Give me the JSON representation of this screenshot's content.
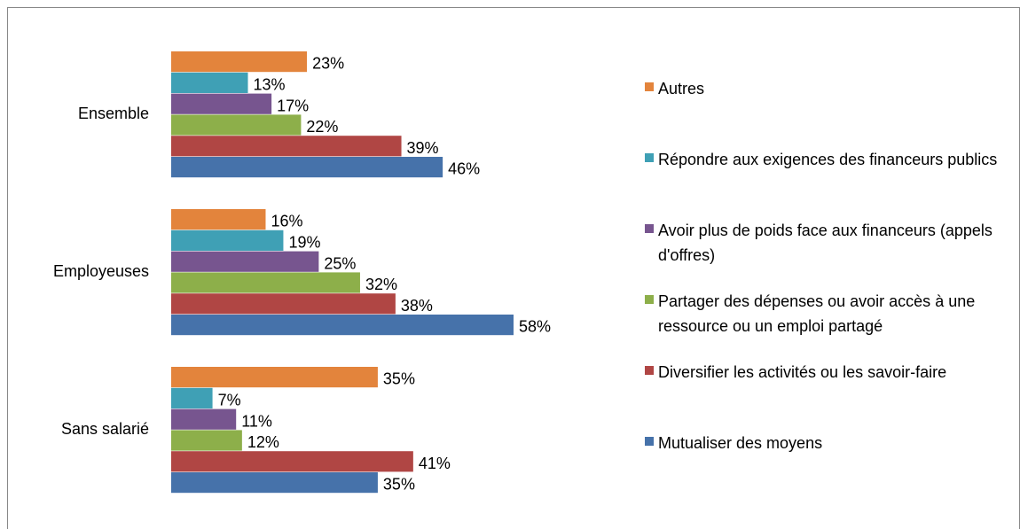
{
  "chart_data": {
    "type": "bar",
    "orientation": "horizontal",
    "categories": [
      "Ensemble",
      "Employeuses",
      "Sans salarié"
    ],
    "series": [
      {
        "name": "Autres",
        "color": "#e3843c",
        "values": [
          23,
          16,
          35
        ],
        "value_labels": [
          "23%",
          "16%",
          "35%"
        ]
      },
      {
        "name": "Répondre aux exigences des financeurs publics",
        "color": "#3fa0b5",
        "values": [
          13,
          19,
          7
        ],
        "value_labels": [
          "13%",
          "19%",
          "7%"
        ]
      },
      {
        "name": "Avoir plus de poids face aux financeurs (appels d'offres)",
        "color": "#77558f",
        "values": [
          17,
          25,
          11
        ],
        "value_labels": [
          "17%",
          "25%",
          "11%"
        ]
      },
      {
        "name": "Partager des dépenses ou avoir accès à une ressource ou un emploi partagé",
        "color": "#8daf4a",
        "values": [
          22,
          32,
          12
        ],
        "value_labels": [
          "22%",
          "32%",
          "12%"
        ]
      },
      {
        "name": "Diversifier les activités ou les savoir-faire",
        "color": "#b04644",
        "values": [
          39,
          38,
          41
        ],
        "value_labels": [
          "39%",
          "38%",
          "41%"
        ]
      },
      {
        "name": "Mutualiser des moyens",
        "color": "#4672aa",
        "values": [
          46,
          58,
          35
        ],
        "value_labels": [
          "46%",
          "58%",
          "35%"
        ]
      }
    ],
    "legend": "right"
  }
}
